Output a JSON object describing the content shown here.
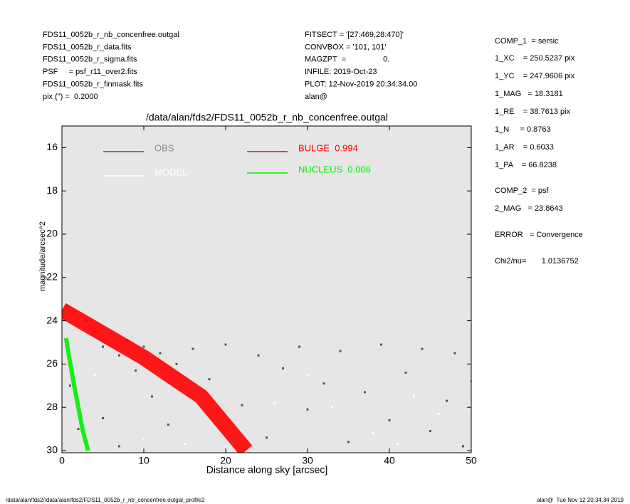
{
  "header_left": [
    "FDS11_0052b_r_nb_concenfree.outgal",
    "FDS11_0052b_r_data.fits",
    "FDS11_0052b_r_sigma.fits",
    "PSF     = psf_r11_over2.fits",
    "FDS11_0052b_r_finmask.fits",
    "pix (\") =  0.2000"
  ],
  "header_middle": [
    "FITSECT = '[27:469,28:470]'",
    "CONVBOX = '101, 101'",
    "MAGZPT  =                 0.",
    "INFILE: 2019-Oct-23",
    "PLOT: 12-Nov-2019 20:34:34.00",
    "alan@"
  ],
  "side_panel": [
    "COMP_1  = sersic",
    "1_XC    = 250.5237 pix",
    "1_YC    = 247.9606 pix",
    "1_MAG   = 18.3181",
    "1_RE    = 38.7613 pix",
    "1_N     = 0.8763",
    "1_AR    = 0.6033",
    "1_PA    = 66.8238",
    "COMP_2  = psf",
    "2_MAG   = 23.8643",
    "ERROR   = Convergence",
    "Chi2/nu=       1.0136752"
  ],
  "footer_left": "/data/alan/fds2//data/alan/fds2/FDS11_0052b_r_nb_concenfree.outgal_profile2",
  "footer_right": "alan@  Tue Nov 12 20:34:34 2019",
  "chart_data": {
    "type": "scatter",
    "title": "/data/alan/fds2/FDS11_0052b_r_nb_concenfree.outgal",
    "xlabel": "Distance along sky [arcsec]",
    "ylabel": "magnitude/arcsec^2",
    "xlim": [
      0,
      50
    ],
    "ylim": [
      15,
      30.1
    ],
    "y_inverted": true,
    "background": "#e6e6e6",
    "xticks": [
      0,
      10,
      20,
      30,
      40,
      50
    ],
    "yticks": [
      16,
      18,
      20,
      22,
      24,
      26,
      28,
      30
    ],
    "series": [
      {
        "name": "OBS",
        "color": "#555555",
        "kind": "points",
        "x": [
          0.5,
          1.5,
          3,
          4,
          5,
          6,
          7,
          8,
          9,
          10,
          11,
          12,
          13,
          14,
          16,
          18,
          20,
          22,
          24,
          25,
          27,
          29,
          30,
          32,
          34,
          35,
          37,
          39,
          40,
          42,
          44,
          45,
          47,
          48,
          49,
          50,
          1,
          2,
          5,
          7
        ],
        "values": [
          23.3,
          23.6,
          24,
          24.5,
          25.2,
          24.6,
          25.6,
          24.9,
          26.3,
          25.2,
          27.5,
          25.5,
          28.8,
          26,
          25.3,
          26.7,
          25.1,
          27.9,
          25.6,
          29.4,
          26.2,
          25.2,
          28.1,
          26.9,
          25.4,
          29.6,
          27.3,
          25.1,
          28.6,
          26.4,
          25.3,
          29.1,
          27.7,
          25.5,
          29.8,
          26.8,
          27,
          29,
          28.5,
          29.8
        ]
      },
      {
        "name": "MODEL",
        "color": "#ffffff",
        "kind": "points",
        "x": [
          10,
          15,
          20,
          26,
          33,
          38,
          43,
          46,
          2,
          4,
          30,
          41
        ],
        "values": [
          29.5,
          29.7,
          28.5,
          27.8,
          28,
          29.2,
          27.5,
          28.3,
          28,
          26.5,
          26.5,
          29.7
        ]
      },
      {
        "name": "BULGE  0.994",
        "color": "#ff0000",
        "kind": "band",
        "x": [
          0,
          10,
          17,
          22.5
        ],
        "values": [
          23.5,
          25.7,
          27.5,
          30
        ]
      },
      {
        "name": "NUCLEUS  0.006",
        "color": "#00ee00",
        "kind": "band",
        "x": [
          0.5,
          0.8,
          1.5,
          2.5,
          3.2
        ],
        "values": [
          24.8,
          25.5,
          27,
          29,
          30
        ]
      }
    ]
  }
}
